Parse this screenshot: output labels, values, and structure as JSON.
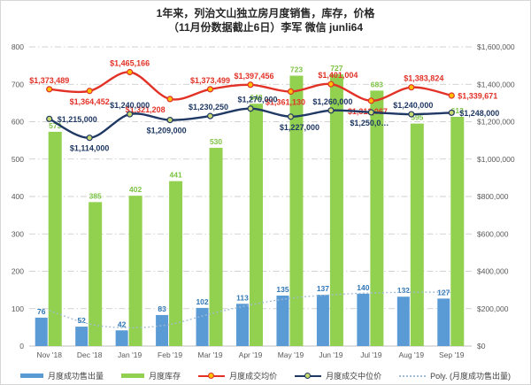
{
  "title": {
    "line1": "1年来，列治文山独立房月度销售，库存，价格",
    "line2": "（11月份数据截止6日）李军 微信 junli64"
  },
  "chart_data": {
    "type": "combo-bar-line",
    "categories": [
      "Nov '18",
      "Dec '18",
      "Jan '19",
      "Feb '19",
      "Mar '19",
      "Apr '19",
      "May '19",
      "Jun '19",
      "Jul '19",
      "Aug '19",
      "Sep '19"
    ],
    "left_axis": {
      "min": 0,
      "max": 800,
      "step": 100,
      "ticks": [
        "800",
        "700",
        "600",
        "500",
        "400",
        "300",
        "200",
        "100",
        "0"
      ]
    },
    "right_axis": {
      "min": 0,
      "max": 1600000,
      "step": 200000,
      "ticks": [
        "$1,600,000",
        "$1,400,000",
        "$1,200,000",
        "$1,000,000",
        "$800,000",
        "$600,000",
        "$400,000",
        "$200,000",
        "$0"
      ]
    },
    "grid": "dashed horizontal",
    "legend_position": "bottom",
    "series": [
      {
        "id": "sales",
        "name": "月度成功售出量",
        "type": "bar",
        "axis": "left",
        "color": "#5b9bd5",
        "label_color": "#2e75b6",
        "values": [
          76,
          52,
          42,
          83,
          102,
          113,
          135,
          137,
          140,
          132,
          127
        ]
      },
      {
        "id": "inventory",
        "name": "月度库存",
        "type": "bar",
        "axis": "left",
        "color": "#92d050",
        "label_color": "#7cc342",
        "values": [
          573,
          385,
          402,
          441,
          530,
          648,
          723,
          727,
          683,
          595,
          613
        ]
      },
      {
        "id": "avg_price",
        "name": "月度成交均价",
        "type": "line",
        "axis": "right",
        "color": "#e23227",
        "marker_fill": "#ffc000",
        "label_color": "#e23227",
        "values": [
          1373489,
          1364452,
          1465166,
          1321208,
          1373499,
          1397456,
          1361130,
          1401004,
          1312067,
          1383824,
          1339671
        ],
        "labels": [
          "$1,373,489",
          "$1,364,452",
          "$1,465,166",
          "$1,321,208",
          "$1,373,499",
          "$1,397,456",
          "$1,361,130",
          "$1,401,004",
          "$1,312,067",
          "$1,383,824",
          "$1,339,671"
        ]
      },
      {
        "id": "median_price",
        "name": "月度成交中位价",
        "type": "line",
        "axis": "right",
        "color": "#1f3864",
        "marker_fill": "#c9da6e",
        "label_color": "#1f3864",
        "values": [
          1215000,
          1114000,
          1240000,
          1209000,
          1230250,
          1270000,
          1227000,
          1260000,
          1250000,
          1240000,
          1248000
        ],
        "labels": [
          "$1,215,000",
          "$1,114,000",
          "$1,240,000",
          "$1,209,000",
          "$1,230,250",
          "$1,270,000",
          "$1,227,000",
          "$1,260,000",
          "$1,250,0…",
          "$1,240,000",
          "$1,248,000"
        ]
      },
      {
        "id": "poly_trend",
        "name": "Poly. (月度成功售出量)",
        "type": "dotted-line",
        "axis": "left",
        "color": "#a3bcd6",
        "values": [
          95,
          59,
          49,
          58,
          86,
          110,
          128,
          137,
          142,
          144,
          144
        ]
      }
    ]
  },
  "legend": {
    "items": [
      {
        "label": "月度成功售出量"
      },
      {
        "label": "月度库存"
      },
      {
        "label": "月度成交均价"
      },
      {
        "label": "月度成交中位价"
      },
      {
        "label": "Poly. (月度成功售出量)"
      }
    ]
  }
}
